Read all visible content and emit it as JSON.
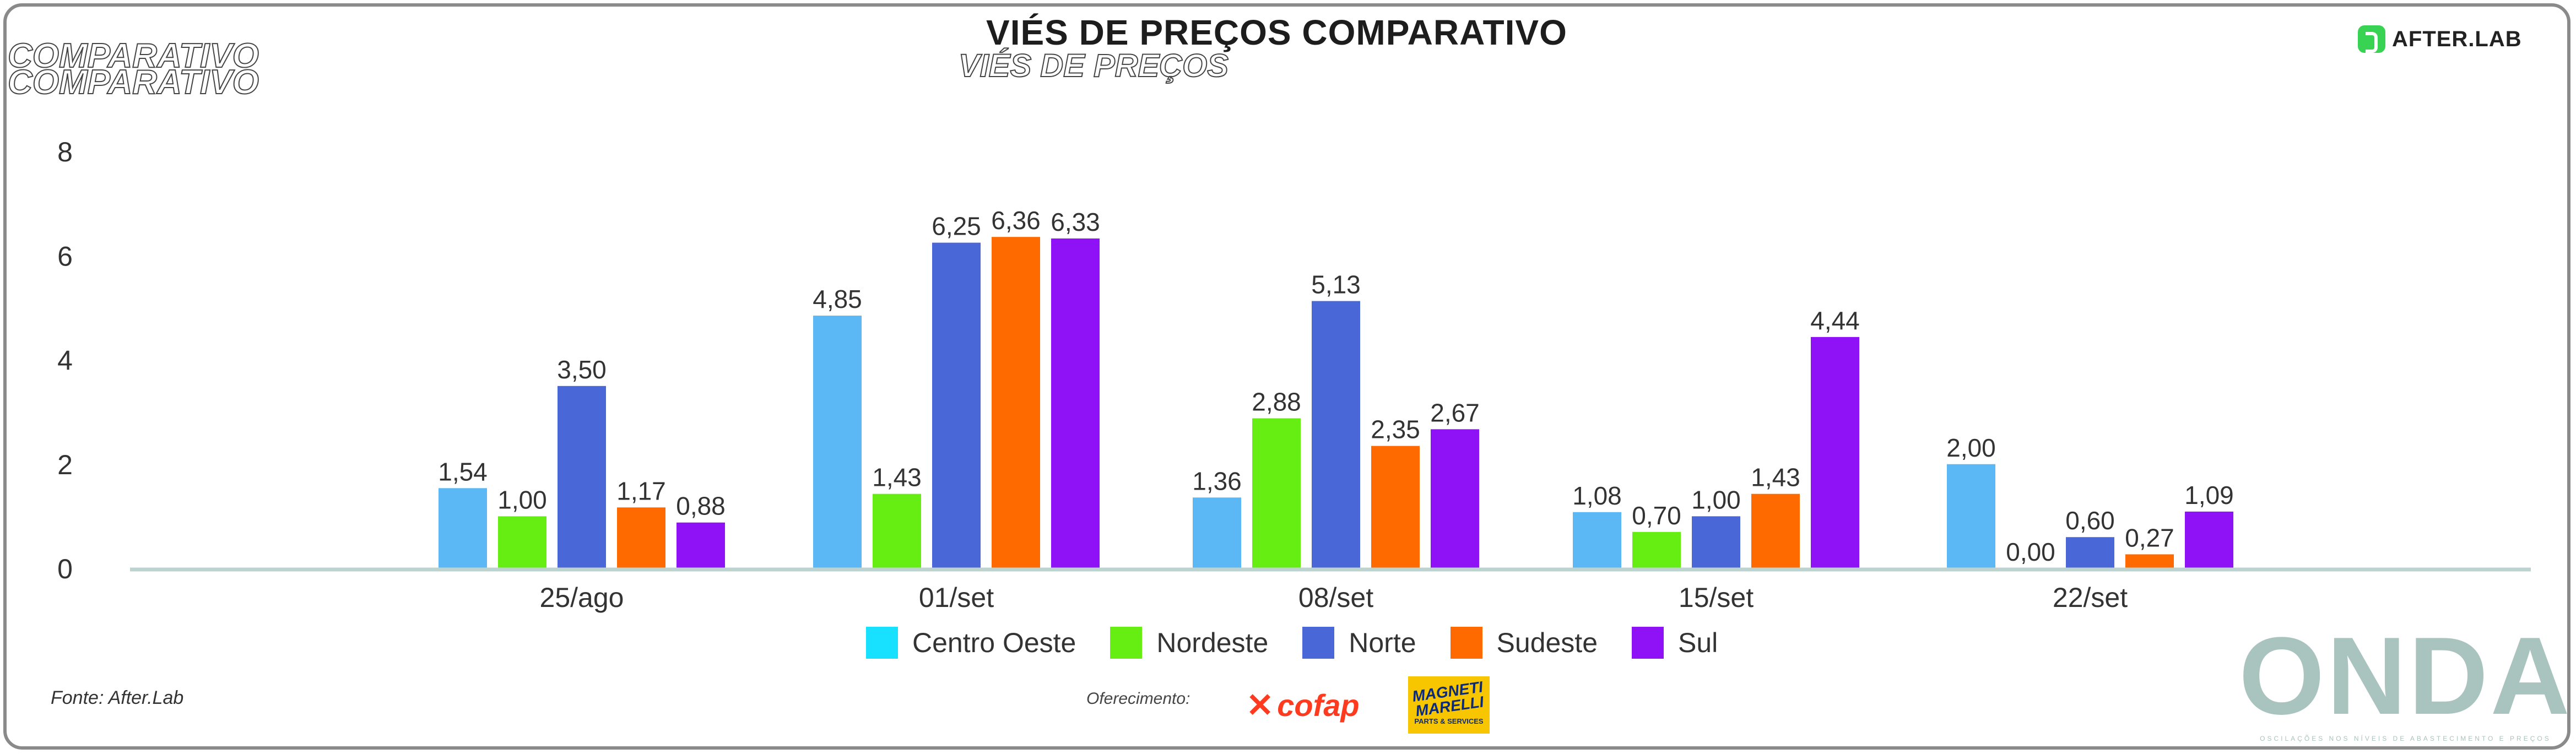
{
  "header": {
    "title": "VIÉS DE PREÇOS COMPARATIVO",
    "ghost_left": "COMPARATIVO COMPARATIVO",
    "ghost_mid": "VIÉS DE PREÇOS"
  },
  "branding": {
    "afterlab": "AFTER.LAB",
    "onda": "ONDA",
    "onda_tagline": "OSCILAÇÕES NOS NÍVEIS DE ABASTECIMENTO E PREÇOS",
    "source": "Fonte: After.Lab",
    "sponsors_label": "Oferecimento:",
    "cofap": "cofap",
    "magneti_brand": "MAGNETI\nMARELLI",
    "magneti_sub": "PARTS & SERVICES"
  },
  "chart_data": {
    "type": "bar",
    "title": "VIÉS DE PREÇOS COMPARATIVO",
    "categories": [
      "25/ago",
      "01/set",
      "08/set",
      "15/set",
      "22/set"
    ],
    "series": [
      {
        "name": "Centro Oeste",
        "color": "#5bb8f5",
        "legend_color": "#18e0ff",
        "values": [
          1.54,
          4.85,
          1.36,
          1.08,
          2.0
        ],
        "labels": [
          "1,54",
          "4,85",
          "1,36",
          "1,08",
          "2,00"
        ]
      },
      {
        "name": "Nordeste",
        "color": "#66ee12",
        "legend_color": "#66ee12",
        "values": [
          1.0,
          1.43,
          2.88,
          0.7,
          0.0
        ],
        "labels": [
          "1,00",
          "1,43",
          "2,88",
          "0,70",
          "0,00"
        ]
      },
      {
        "name": "Norte",
        "color": "#4a67d8",
        "legend_color": "#4a67d8",
        "values": [
          3.5,
          6.25,
          5.13,
          1.0,
          0.6
        ],
        "labels": [
          "3,50",
          "6,25",
          "5,13",
          "1,00",
          "0,60"
        ]
      },
      {
        "name": "Sudeste",
        "color": "#ff6a00",
        "legend_color": "#ff6a00",
        "values": [
          1.17,
          6.36,
          2.35,
          1.43,
          0.27
        ],
        "labels": [
          "1,17",
          "6,36",
          "2,35",
          "1,43",
          "0,27"
        ]
      },
      {
        "name": "Sul",
        "color": "#8e12f5",
        "legend_color": "#8e12f5",
        "values": [
          0.88,
          6.33,
          2.67,
          4.44,
          1.09
        ],
        "labels": [
          "0,88",
          "6,33",
          "2,67",
          "4,44",
          "1,09"
        ]
      }
    ],
    "y_ticks": [
      "0",
      "2",
      "4",
      "6",
      "8"
    ],
    "ylim": [
      0,
      8
    ],
    "grid": false,
    "legend_position": "bottom"
  }
}
